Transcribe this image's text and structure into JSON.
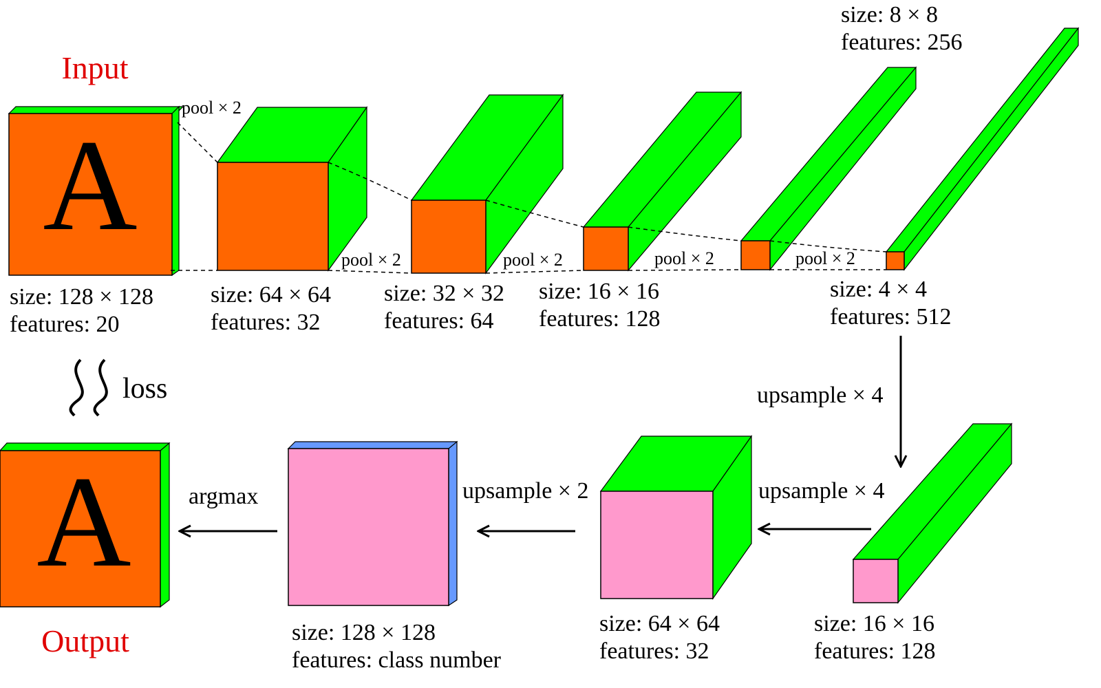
{
  "colors": {
    "front_encoder": "#ff6600",
    "side_top": "#00ff00",
    "front_decoder": "#ff99cc",
    "final_side": "#6699ff",
    "title": "#e00000"
  },
  "titles": {
    "input": "Input",
    "output": "Output"
  },
  "glyphs": {
    "input_letter": "A",
    "output_letter": "A"
  },
  "encoder": [
    {
      "size": "size: 128 × 128",
      "features": "features: 20"
    },
    {
      "size": "size: 64 × 64",
      "features": "features: 32"
    },
    {
      "size": "size: 32 × 32",
      "features": "features: 64"
    },
    {
      "size": "size: 16 × 16",
      "features": "features: 128"
    },
    {
      "size": "size: 8 × 8",
      "features": "features: 256"
    },
    {
      "size": "size: 4 × 4",
      "features": "features: 512"
    }
  ],
  "pool_labels": [
    "pool × 2",
    "pool × 2",
    "pool × 2",
    "pool × 2",
    "pool × 2"
  ],
  "decoder": [
    {
      "size": "size: 16 × 16",
      "features": "features: 128"
    },
    {
      "size": "size: 64 × 64",
      "features": "features: 32"
    },
    {
      "size": "size: 128 × 128",
      "features": "features: class number"
    }
  ],
  "arrows": {
    "upsample_down": "upsample × 4",
    "upsample_4": "upsample × 4",
    "upsample_2": "upsample × 2",
    "argmax": "argmax"
  },
  "loss_label": "loss"
}
